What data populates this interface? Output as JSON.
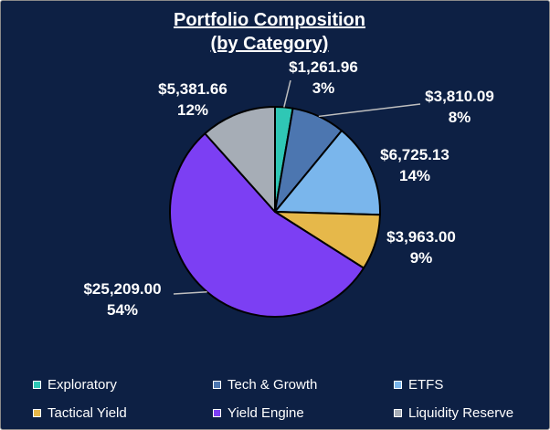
{
  "chart_data": {
    "type": "pie",
    "title_line1": "Portfolio Composition",
    "title_line2": "(by Category)",
    "slices": [
      {
        "category": "Exploratory",
        "value": 1261.96,
        "value_label": "$1,261.96",
        "percent_label": "3%",
        "color": "#2fc7b5"
      },
      {
        "category": "Tech & Growth",
        "value": 3810.09,
        "value_label": "$3,810.09",
        "percent_label": "8%",
        "color": "#4c76b0"
      },
      {
        "category": "ETFS",
        "value": 6725.13,
        "value_label": "$6,725.13",
        "percent_label": "14%",
        "color": "#7ab6ec"
      },
      {
        "category": "Tactical Yield",
        "value": 3963.0,
        "value_label": "$3,963.00",
        "percent_label": "9%",
        "color": "#e6b84a"
      },
      {
        "category": "Yield Engine",
        "value": 25209.0,
        "value_label": "$25,209.00",
        "percent_label": "54%",
        "color": "#7c3ff3"
      },
      {
        "category": "Liquidity Reserve",
        "value": 5381.66,
        "value_label": "$5,381.66",
        "percent_label": "12%",
        "color": "#a6adb6"
      }
    ],
    "legend": {
      "placement": "bottom",
      "columns": 3
    }
  }
}
